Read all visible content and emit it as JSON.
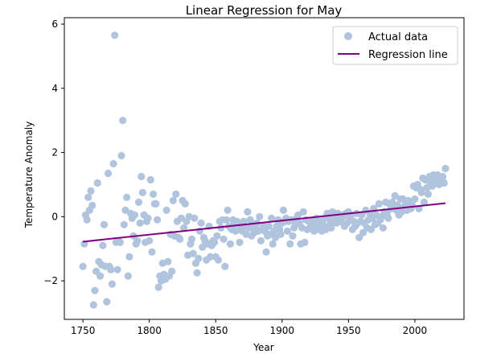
{
  "chart_data": {
    "type": "scatter",
    "title": "Linear Regression for May",
    "xlabel": "Year",
    "ylabel": "Temperature Anomaly",
    "xlim": [
      1736,
      2037
    ],
    "ylim": [
      -3.2,
      6.2
    ],
    "xticks": [
      1750,
      1800,
      1850,
      1900,
      1950,
      2000
    ],
    "yticks": [
      -2,
      0,
      2,
      4,
      6
    ],
    "grid": false,
    "legend_position": "top-right",
    "series": [
      {
        "name": "Actual data",
        "kind": "scatter",
        "color": "#b0c4de",
        "points": [
          [
            1750,
            -1.55
          ],
          [
            1751,
            -0.85
          ],
          [
            1752,
            0.05
          ],
          [
            1753,
            -0.1
          ],
          [
            1754,
            0.6
          ],
          [
            1755,
            0.2
          ],
          [
            1756,
            0.8
          ],
          [
            1757,
            0.35
          ],
          [
            1758,
            -2.75
          ],
          [
            1759,
            -2.3
          ],
          [
            1760,
            -1.7
          ],
          [
            1761,
            1.05
          ],
          [
            1762,
            -1.4
          ],
          [
            1763,
            -1.85
          ],
          [
            1764,
            -1.5
          ],
          [
            1765,
            -0.9
          ],
          [
            1766,
            -0.25
          ],
          [
            1767,
            -1.55
          ],
          [
            1768,
            -2.65
          ],
          [
            1769,
            1.35
          ],
          [
            1770,
            -1.55
          ],
          [
            1771,
            -1.65
          ],
          [
            1772,
            -2.1
          ],
          [
            1773,
            1.65
          ],
          [
            1774,
            5.65
          ],
          [
            1775,
            -0.8
          ],
          [
            1776,
            -1.65
          ],
          [
            1777,
            -0.75
          ],
          [
            1778,
            -0.8
          ],
          [
            1779,
            1.9
          ],
          [
            1780,
            3.0
          ],
          [
            1781,
            -0.25
          ],
          [
            1782,
            0.2
          ],
          [
            1783,
            0.6
          ],
          [
            1784,
            -1.85
          ],
          [
            1785,
            -1.25
          ],
          [
            1786,
            0.1
          ],
          [
            1787,
            -0.05
          ],
          [
            1788,
            -0.6
          ],
          [
            1789,
            0.05
          ],
          [
            1790,
            -0.85
          ],
          [
            1791,
            -0.75
          ],
          [
            1792,
            0.45
          ],
          [
            1793,
            -0.2
          ],
          [
            1794,
            1.25
          ],
          [
            1795,
            0.75
          ],
          [
            1796,
            0.05
          ],
          [
            1797,
            -0.8
          ],
          [
            1798,
            -0.15
          ],
          [
            1799,
            -0.05
          ],
          [
            1800,
            -0.75
          ],
          [
            1801,
            1.15
          ],
          [
            1802,
            -1.1
          ],
          [
            1803,
            0.7
          ],
          [
            1804,
            0.4
          ],
          [
            1805,
            0.4
          ],
          [
            1806,
            -0.1
          ],
          [
            1807,
            -2.2
          ],
          [
            1808,
            -1.85
          ],
          [
            1809,
            -2.0
          ],
          [
            1810,
            -1.45
          ],
          [
            1811,
            -1.8
          ],
          [
            1812,
            -1.95
          ],
          [
            1813,
            0.2
          ],
          [
            1814,
            -1.4
          ],
          [
            1815,
            -1.85
          ],
          [
            1816,
            -0.55
          ],
          [
            1817,
            -1.7
          ],
          [
            1818,
            0.5
          ],
          [
            1819,
            -0.6
          ],
          [
            1820,
            0.7
          ],
          [
            1821,
            -0.15
          ],
          [
            1822,
            -0.65
          ],
          [
            1823,
            -0.7
          ],
          [
            1824,
            -0.05
          ],
          [
            1825,
            0.5
          ],
          [
            1826,
            -0.35
          ],
          [
            1827,
            0.4
          ],
          [
            1828,
            -0.15
          ],
          [
            1829,
            -1.2
          ],
          [
            1830,
            0.0
          ],
          [
            1831,
            -0.85
          ],
          [
            1832,
            -0.7
          ],
          [
            1833,
            -1.15
          ],
          [
            1834,
            -0.05
          ],
          [
            1835,
            -1.45
          ],
          [
            1836,
            -1.75
          ],
          [
            1837,
            -1.3
          ],
          [
            1838,
            -0.45
          ],
          [
            1839,
            -0.2
          ],
          [
            1840,
            -0.95
          ],
          [
            1841,
            -0.65
          ],
          [
            1842,
            -0.75
          ],
          [
            1843,
            -1.35
          ],
          [
            1844,
            -0.85
          ],
          [
            1845,
            -0.3
          ],
          [
            1846,
            -1.25
          ],
          [
            1847,
            -0.9
          ],
          [
            1848,
            -0.75
          ],
          [
            1849,
            -0.8
          ],
          [
            1850,
            -1.25
          ],
          [
            1851,
            -0.6
          ],
          [
            1852,
            -1.35
          ],
          [
            1853,
            -0.15
          ],
          [
            1854,
            -0.35
          ],
          [
            1855,
            -0.1
          ],
          [
            1856,
            -0.7
          ],
          [
            1857,
            -1.55
          ],
          [
            1858,
            -0.1
          ],
          [
            1859,
            0.2
          ],
          [
            1860,
            -0.3
          ],
          [
            1861,
            -0.85
          ],
          [
            1862,
            -0.4
          ],
          [
            1863,
            -0.1
          ],
          [
            1864,
            -0.25
          ],
          [
            1865,
            -0.45
          ],
          [
            1866,
            -0.15
          ],
          [
            1867,
            -0.2
          ],
          [
            1868,
            -0.8
          ],
          [
            1869,
            -0.35
          ],
          [
            1870,
            -0.45
          ],
          [
            1871,
            -0.15
          ],
          [
            1872,
            -0.3
          ],
          [
            1873,
            -0.55
          ],
          [
            1874,
            0.15
          ],
          [
            1875,
            -0.35
          ],
          [
            1876,
            -0.1
          ],
          [
            1877,
            -0.6
          ],
          [
            1878,
            -0.25
          ],
          [
            1879,
            -0.5
          ],
          [
            1880,
            -0.35
          ],
          [
            1881,
            -0.2
          ],
          [
            1882,
            -0.45
          ],
          [
            1883,
            0.0
          ],
          [
            1884,
            -0.75
          ],
          [
            1885,
            -0.4
          ],
          [
            1886,
            -0.3
          ],
          [
            1887,
            -0.45
          ],
          [
            1888,
            -1.1
          ],
          [
            1889,
            -0.6
          ],
          [
            1890,
            -0.3
          ],
          [
            1891,
            -0.55
          ],
          [
            1892,
            -0.05
          ],
          [
            1893,
            -0.85
          ],
          [
            1894,
            -0.45
          ],
          [
            1895,
            -0.65
          ],
          [
            1896,
            -0.3
          ],
          [
            1897,
            -0.1
          ],
          [
            1898,
            -0.4
          ],
          [
            1899,
            -0.55
          ],
          [
            1900,
            -0.2
          ],
          [
            1901,
            0.2
          ],
          [
            1902,
            -0.15
          ],
          [
            1903,
            -0.05
          ],
          [
            1904,
            -0.45
          ],
          [
            1905,
            -0.15
          ],
          [
            1906,
            -0.85
          ],
          [
            1907,
            -0.1
          ],
          [
            1908,
            -0.6
          ],
          [
            1909,
            -0.35
          ],
          [
            1910,
            -0.25
          ],
          [
            1911,
            -0.05
          ],
          [
            1912,
            0.05
          ],
          [
            1913,
            -0.2
          ],
          [
            1914,
            -0.85
          ],
          [
            1915,
            -0.35
          ],
          [
            1916,
            0.15
          ],
          [
            1917,
            -0.8
          ],
          [
            1918,
            -0.1
          ],
          [
            1919,
            -0.4
          ],
          [
            1920,
            -0.15
          ],
          [
            1921,
            -0.35
          ],
          [
            1922,
            -0.3
          ],
          [
            1923,
            -0.1
          ],
          [
            1924,
            -0.45
          ],
          [
            1925,
            -0.25
          ],
          [
            1926,
            -0.05
          ],
          [
            1927,
            -0.4
          ],
          [
            1928,
            -0.15
          ],
          [
            1929,
            -0.3
          ],
          [
            1930,
            -0.45
          ],
          [
            1931,
            -0.25
          ],
          [
            1932,
            -0.05
          ],
          [
            1933,
            -0.4
          ],
          [
            1934,
            0.1
          ],
          [
            1935,
            -0.3
          ],
          [
            1936,
            -0.1
          ],
          [
            1937,
            -0.35
          ],
          [
            1938,
            0.15
          ],
          [
            1939,
            -0.15
          ],
          [
            1940,
            0.05
          ],
          [
            1941,
            -0.2
          ],
          [
            1942,
            0.1
          ],
          [
            1943,
            -0.05
          ],
          [
            1944,
            -0.15
          ],
          [
            1945,
            0.05
          ],
          [
            1946,
            0.0
          ],
          [
            1947,
            -0.3
          ],
          [
            1948,
            0.1
          ],
          [
            1949,
            -0.2
          ],
          [
            1950,
            0.15
          ],
          [
            1951,
            -0.1
          ],
          [
            1952,
            0.05
          ],
          [
            1953,
            -0.4
          ],
          [
            1954,
            -0.15
          ],
          [
            1955,
            -0.3
          ],
          [
            1956,
            0.1
          ],
          [
            1957,
            -0.2
          ],
          [
            1958,
            -0.65
          ],
          [
            1959,
            -0.15
          ],
          [
            1960,
            0.05
          ],
          [
            1961,
            -0.5
          ],
          [
            1962,
            -0.2
          ],
          [
            1963,
            0.2
          ],
          [
            1964,
            -0.35
          ],
          [
            1965,
            -0.1
          ],
          [
            1966,
            0.1
          ],
          [
            1967,
            -0.4
          ],
          [
            1968,
            -0.05
          ],
          [
            1969,
            0.25
          ],
          [
            1970,
            -0.25
          ],
          [
            1971,
            0.05
          ],
          [
            1972,
            -0.2
          ],
          [
            1973,
            0.4
          ],
          [
            1974,
            -0.1
          ],
          [
            1975,
            0.0
          ],
          [
            1976,
            -0.35
          ],
          [
            1977,
            0.15
          ],
          [
            1978,
            0.45
          ],
          [
            1979,
            0.1
          ],
          [
            1980,
            -0.05
          ],
          [
            1981,
            0.4
          ],
          [
            1982,
            0.25
          ],
          [
            1983,
            0.45
          ],
          [
            1984,
            0.3
          ],
          [
            1985,
            0.65
          ],
          [
            1986,
            0.2
          ],
          [
            1987,
            0.35
          ],
          [
            1988,
            0.05
          ],
          [
            1989,
            0.55
          ],
          [
            1990,
            0.15
          ],
          [
            1991,
            0.55
          ],
          [
            1992,
            0.3
          ],
          [
            1993,
            0.4
          ],
          [
            1994,
            0.2
          ],
          [
            1995,
            0.5
          ],
          [
            1996,
            0.35
          ],
          [
            1997,
            0.25
          ],
          [
            1998,
            0.35
          ],
          [
            1999,
            0.95
          ],
          [
            2000,
            0.55
          ],
          [
            2001,
            0.9
          ],
          [
            2002,
            1.0
          ],
          [
            2003,
            0.25
          ],
          [
            2004,
            0.85
          ],
          [
            2005,
            0.75
          ],
          [
            2006,
            1.2
          ],
          [
            2007,
            0.45
          ],
          [
            2008,
            1.15
          ],
          [
            2009,
            0.9
          ],
          [
            2010,
            0.7
          ],
          [
            2011,
            1.25
          ],
          [
            2012,
            1.05
          ],
          [
            2013,
            0.95
          ],
          [
            2014,
            1.3
          ],
          [
            2015,
            1.1
          ],
          [
            2016,
            1.05
          ],
          [
            2017,
            1.3
          ],
          [
            2018,
            1.0
          ],
          [
            2019,
            1.2
          ],
          [
            2020,
            1.05
          ],
          [
            2021,
            1.25
          ],
          [
            2022,
            1.05
          ],
          [
            2023,
            1.5
          ]
        ]
      },
      {
        "name": "Regression line",
        "kind": "line",
        "color": "#800080",
        "points": [
          [
            1750,
            -0.78
          ],
          [
            2023,
            0.42
          ]
        ]
      }
    ]
  }
}
